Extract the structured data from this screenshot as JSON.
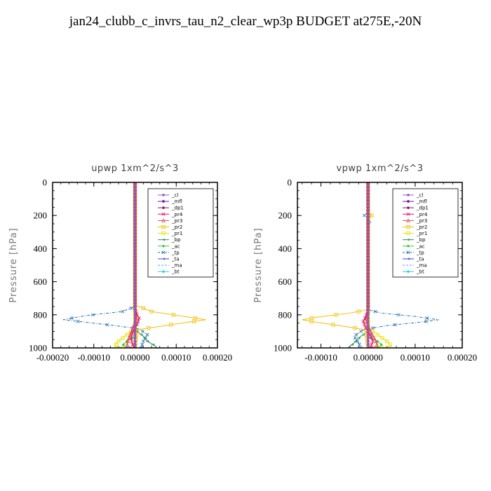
{
  "page": {
    "title": "jan24_clubb_c_invrs_tau_n2_clear_wp3p  BUDGET at275E,-20N"
  },
  "chart_data": [
    {
      "type": "line",
      "title": "upwp   1xm^2/s^3",
      "ylabel": "Pressure [hPa]",
      "xlabel": "",
      "xlim": [
        -0.0002,
        0.0002
      ],
      "ylim": [
        0,
        1000
      ],
      "y_inverted": true,
      "x_ticks": [
        -0.0002,
        -0.0001,
        0,
        0.0001,
        0.0002
      ],
      "x_tick_labels": [
        "-0.00020",
        "-0.00010",
        "0.00000",
        "0.00010",
        "0.00020"
      ],
      "y_ticks": [
        0,
        200,
        400,
        600,
        800,
        1000
      ],
      "y_tick_labels": [
        "0",
        "200",
        "400",
        "600",
        "800",
        "1000"
      ],
      "legend_position": "top-right",
      "series": [
        {
          "name": "_cl",
          "color": "#9b59b6",
          "points": [
            [
              0,
              0
            ],
            [
              0,
              1000
            ]
          ]
        },
        {
          "name": "_mfl",
          "color": "#6a0dad",
          "points": [
            [
              0,
              0
            ],
            [
              0,
              1000
            ]
          ]
        },
        {
          "name": "_dp1",
          "color": "#8b1a5c",
          "points": [
            [
              0,
              0
            ],
            [
              0,
              1000
            ]
          ]
        },
        {
          "name": "_pr4",
          "color": "#e0115f",
          "points": [
            [
              0,
              0
            ],
            [
              0,
              760
            ],
            [
              5e-06,
              800
            ],
            [
              1e-05,
              820
            ],
            [
              5e-06,
              860
            ],
            [
              -5e-06,
              900
            ],
            [
              -1e-05,
              940
            ],
            [
              -5e-06,
              990
            ],
            [
              0,
              1000
            ]
          ]
        },
        {
          "name": "_pr3",
          "color": "#e05050",
          "points": [
            [
              0,
              0
            ],
            [
              0,
              760
            ],
            [
              4e-06,
              820
            ],
            [
              -5e-06,
              880
            ],
            [
              -1.5e-05,
              940
            ],
            [
              -2e-05,
              990
            ],
            [
              0,
              1000
            ]
          ]
        },
        {
          "name": "_pr2",
          "color": "#f0c000",
          "points": [
            [
              0,
              0
            ],
            [
              0,
              740
            ],
            [
              4e-05,
              780
            ],
            [
              0.00012,
              810
            ],
            [
              0.000172,
              830
            ],
            [
              0.000128,
              845
            ],
            [
              6e-05,
              870
            ],
            [
              5e-06,
              890
            ],
            [
              0,
              1000
            ]
          ]
        },
        {
          "name": "_pr1",
          "color": "#e8e000",
          "points": [
            [
              0,
              0
            ],
            [
              0,
              880
            ],
            [
              -2e-05,
              920
            ],
            [
              -4e-05,
              960
            ],
            [
              -5e-05,
              990
            ],
            [
              -3e-05,
              1000
            ]
          ]
        },
        {
          "name": "_bp",
          "color": "#2e8b57",
          "points": [
            [
              0,
              0
            ],
            [
              0,
              890
            ],
            [
              2e-05,
              930
            ],
            [
              3e-05,
              960
            ],
            [
              5e-05,
              990
            ],
            [
              5e-05,
              1000
            ]
          ]
        },
        {
          "name": "_ac",
          "color": "#32cd32",
          "points": [
            [
              0,
              0
            ],
            [
              0,
              930
            ],
            [
              -2e-05,
              960
            ],
            [
              -3e-05,
              985
            ],
            [
              -2e-05,
              1000
            ]
          ]
        },
        {
          "name": "_tp",
          "color": "#1e6fb0",
          "points": [
            [
              0,
              0
            ],
            [
              0,
              750
            ],
            [
              -3e-05,
              780
            ],
            [
              -0.00012,
              805
            ],
            [
              -0.000175,
              830
            ],
            [
              -0.00012,
              845
            ],
            [
              -5e-05,
              865
            ],
            [
              1e-05,
              885
            ],
            [
              3e-05,
              920
            ],
            [
              2e-05,
              960
            ],
            [
              1.5e-05,
              1000
            ]
          ]
        },
        {
          "name": "_ta",
          "color": "#4040c0",
          "points": [
            [
              0,
              0
            ],
            [
              0,
              1000
            ]
          ]
        },
        {
          "name": "_ma",
          "color": "#5fa8e0",
          "points": [
            [
              0,
              0
            ],
            [
              0,
              1000
            ]
          ]
        },
        {
          "name": "_bt",
          "color": "#20d0e0",
          "points": [
            [
              0,
              0
            ],
            [
              0,
              1000
            ]
          ]
        }
      ]
    },
    {
      "type": "line",
      "title": "vpwp   1xm^2/s^3",
      "ylabel": "Pressure [hPa]",
      "xlabel": "",
      "xlim": [
        -0.00015,
        0.0002
      ],
      "ylim": [
        0,
        1000
      ],
      "y_inverted": true,
      "x_ticks": [
        -0.0001,
        0,
        0.0001,
        0.0002
      ],
      "x_tick_labels": [
        "-0.00010",
        "0.00000",
        "0.00010",
        "0.00020"
      ],
      "y_ticks": [
        0,
        200,
        400,
        600,
        800,
        1000
      ],
      "y_tick_labels": [
        "0",
        "200",
        "400",
        "600",
        "800",
        "1000"
      ],
      "legend_position": "top-right",
      "series": [
        {
          "name": "_cl",
          "color": "#9b59b6",
          "points": [
            [
              0,
              0
            ],
            [
              0,
              1000
            ]
          ]
        },
        {
          "name": "_mfl",
          "color": "#6a0dad",
          "points": [
            [
              0,
              0
            ],
            [
              0,
              1000
            ]
          ]
        },
        {
          "name": "_dp1",
          "color": "#8b1a5c",
          "points": [
            [
              0,
              0
            ],
            [
              0,
              1000
            ]
          ]
        },
        {
          "name": "_pr4",
          "color": "#e0115f",
          "points": [
            [
              0,
              0
            ],
            [
              0,
              770
            ],
            [
              -5e-06,
              810
            ],
            [
              -1e-05,
              840
            ],
            [
              -5e-06,
              880
            ],
            [
              5e-06,
              920
            ],
            [
              1e-05,
              960
            ],
            [
              5e-06,
              1000
            ]
          ]
        },
        {
          "name": "_pr3",
          "color": "#e05050",
          "points": [
            [
              0,
              0
            ],
            [
              0,
              780
            ],
            [
              -5e-06,
              830
            ],
            [
              5e-06,
              900
            ],
            [
              1.5e-05,
              950
            ],
            [
              2e-05,
              990
            ],
            [
              0,
              1000
            ]
          ]
        },
        {
          "name": "_pr2",
          "color": "#f0c000",
          "points": [
            [
              0,
              0
            ],
            [
              0,
              180
            ],
            [
              8e-06,
              200
            ],
            [
              0,
              220
            ],
            [
              0,
              770
            ],
            [
              -4e-05,
              790
            ],
            [
              -0.00011,
              815
            ],
            [
              -0.00014,
              830
            ],
            [
              -0.00011,
              845
            ],
            [
              -5e-05,
              870
            ],
            [
              -5e-06,
              890
            ],
            [
              0,
              1000
            ]
          ]
        },
        {
          "name": "_pr1",
          "color": "#e8e000",
          "points": [
            [
              0,
              0
            ],
            [
              0,
              880
            ],
            [
              2e-05,
              920
            ],
            [
              4e-05,
              960
            ],
            [
              5e-05,
              990
            ],
            [
              3e-05,
              1000
            ]
          ]
        },
        {
          "name": "_bp",
          "color": "#2e8b57",
          "points": [
            [
              0,
              0
            ],
            [
              0,
              900
            ],
            [
              -2e-05,
              940
            ],
            [
              -3e-05,
              970
            ],
            [
              -4e-05,
              995
            ],
            [
              -4e-05,
              1000
            ]
          ]
        },
        {
          "name": "_ac",
          "color": "#32cd32",
          "points": [
            [
              0,
              0
            ],
            [
              0,
              930
            ],
            [
              2e-05,
              960
            ],
            [
              3e-05,
              985
            ],
            [
              2e-05,
              1000
            ]
          ]
        },
        {
          "name": "_tp",
          "color": "#1e6fb0",
          "points": [
            [
              0,
              0
            ],
            [
              0,
              180
            ],
            [
              -8e-06,
              200
            ],
            [
              0,
              220
            ],
            [
              0,
              770
            ],
            [
              3e-05,
              790
            ],
            [
              0.0001,
              810
            ],
            [
              0.00015,
              830
            ],
            [
              0.00011,
              845
            ],
            [
              4e-05,
              865
            ],
            [
              -1e-05,
              890
            ],
            [
              -3e-05,
              930
            ],
            [
              -2e-05,
              970
            ],
            [
              -1.5e-05,
              1000
            ]
          ]
        },
        {
          "name": "_ta",
          "color": "#4040c0",
          "points": [
            [
              0,
              0
            ],
            [
              0,
              1000
            ]
          ]
        },
        {
          "name": "_ma",
          "color": "#5fa8e0",
          "points": [
            [
              0,
              0
            ],
            [
              0,
              1000
            ]
          ]
        },
        {
          "name": "_bt",
          "color": "#20d0e0",
          "points": [
            [
              0,
              0
            ],
            [
              0,
              230
            ],
            [
              4e-06,
              240
            ],
            [
              0,
              250
            ],
            [
              0,
              1000
            ]
          ]
        }
      ]
    }
  ]
}
